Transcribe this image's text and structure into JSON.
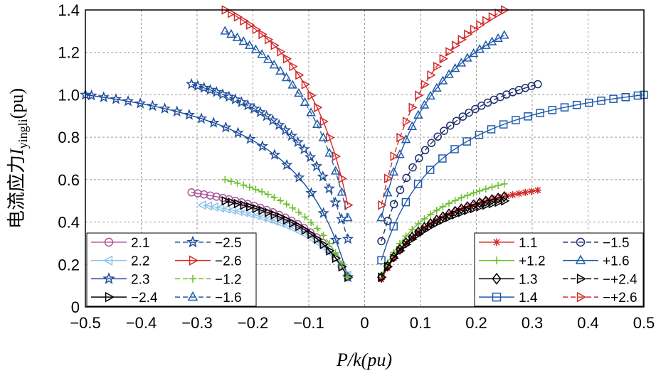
{
  "chart_data": {
    "type": "line",
    "title": "",
    "xlabel": "P/k(pu)",
    "ylabel_prefix": "电流应力",
    "ylabel_symbol": "I",
    "ylabel_subscript": "yingli",
    "ylabel_unit": "(pu)",
    "xlim": [
      -0.5,
      0.5
    ],
    "ylim": [
      0,
      1.4
    ],
    "xticks": [
      -0.5,
      -0.4,
      -0.3,
      -0.2,
      -0.1,
      0,
      0.1,
      0.2,
      0.3,
      0.4,
      0.5
    ],
    "xtick_labels": [
      "−0.5",
      "−0.4",
      "−0.3",
      "−0.2",
      "−0.1",
      "0",
      "0.1",
      "0.2",
      "0.3",
      "0.4",
      "0.5"
    ],
    "yticks": [
      0,
      0.2,
      0.4,
      0.6,
      0.8,
      1.0,
      1.2,
      1.4
    ],
    "ytick_labels": [
      "0",
      "0.2",
      "0.4",
      "0.6",
      "0.8",
      "1.0",
      "1.2",
      "1.4"
    ],
    "grid": true,
    "legends": [
      {
        "position": "bottom-left",
        "entries": [
          "2.1",
          "−2.5",
          "2.2",
          "−2.6",
          "2.3",
          "−1.2",
          "−2.4",
          "−1.6"
        ]
      },
      {
        "position": "bottom-right",
        "entries": [
          "1.1",
          "−1.5",
          "+1.2",
          "+1.6",
          "1.3",
          "−+2.4",
          "1.4",
          "−+2.6"
        ]
      }
    ],
    "series": [
      {
        "name": "2.1",
        "color": "#a9569b",
        "marker": "circle",
        "dashed": false,
        "x_range": [
          -0.31,
          -0.03
        ],
        "y_start": 0.54,
        "y_end": 0.14
      },
      {
        "name": "2.2",
        "color": "#8ec3e8",
        "marker": "tri-left",
        "dashed": false,
        "x_range": [
          -0.29,
          -0.03
        ],
        "y_start": 0.48,
        "y_end": 0.15
      },
      {
        "name": "2.3",
        "color": "#1f4e9c",
        "marker": "star",
        "dashed": false,
        "x_range": [
          -0.5,
          -0.03
        ],
        "y_start": 1.0,
        "y_end": 0.14
      },
      {
        "name": "−2.4",
        "color": "#000000",
        "marker": "tri-right",
        "dashed": false,
        "x_range": [
          -0.25,
          -0.03
        ],
        "y_start": 0.5,
        "y_end": 0.14
      },
      {
        "name": "−2.5",
        "color": "#1f4e9c",
        "marker": "star",
        "dashed": true,
        "x_range": [
          -0.31,
          -0.03
        ],
        "y_start": 1.05,
        "y_end": 0.32
      },
      {
        "name": "−2.6",
        "color": "#d42a2a",
        "marker": "tri-right",
        "dashed": false,
        "x_range": [
          -0.25,
          -0.03
        ],
        "y_start": 1.4,
        "y_end": 0.48
      },
      {
        "name": "−1.2",
        "color": "#6bbf2a",
        "marker": "plus",
        "dashed": true,
        "x_range": [
          -0.25,
          -0.03
        ],
        "y_start": 0.6,
        "y_end": 0.14
      },
      {
        "name": "−1.6",
        "color": "#1f5aa8",
        "marker": "tri-up",
        "dashed": true,
        "x_range": [
          -0.25,
          -0.03
        ],
        "y_start": 1.3,
        "y_end": 0.42
      },
      {
        "name": "1.1",
        "color": "#d42a2a",
        "marker": "asterisk",
        "dashed": false,
        "x_range": [
          0.03,
          0.31
        ],
        "y_start": 0.13,
        "y_end": 0.55
      },
      {
        "name": "+1.2",
        "color": "#6bbf2a",
        "marker": "plus",
        "dashed": false,
        "x_range": [
          0.03,
          0.25
        ],
        "y_start": 0.15,
        "y_end": 0.58
      },
      {
        "name": "1.3",
        "color": "#000000",
        "marker": "diamond",
        "dashed": false,
        "x_range": [
          0.03,
          0.25
        ],
        "y_start": 0.14,
        "y_end": 0.52
      },
      {
        "name": "1.4",
        "color": "#1f5aa8",
        "marker": "square",
        "dashed": false,
        "x_range": [
          0.03,
          0.5
        ],
        "y_start": 0.22,
        "y_end": 1.0
      },
      {
        "name": "−1.5",
        "color": "#1e2f6b",
        "marker": "circle",
        "dashed": true,
        "x_range": [
          0.03,
          0.31
        ],
        "y_start": 0.31,
        "y_end": 1.05
      },
      {
        "name": "+1.6",
        "color": "#1f5aa8",
        "marker": "tri-up",
        "dashed": false,
        "x_range": [
          0.03,
          0.25
        ],
        "y_start": 0.42,
        "y_end": 1.28
      },
      {
        "name": "−+2.4",
        "color": "#000000",
        "marker": "tri-right",
        "dashed": true,
        "x_range": [
          0.03,
          0.25
        ],
        "y_start": 0.14,
        "y_end": 0.5
      },
      {
        "name": "−+2.6",
        "color": "#d42a2a",
        "marker": "tri-right",
        "dashed": true,
        "x_range": [
          0.03,
          0.25
        ],
        "y_start": 0.48,
        "y_end": 1.4
      }
    ]
  }
}
